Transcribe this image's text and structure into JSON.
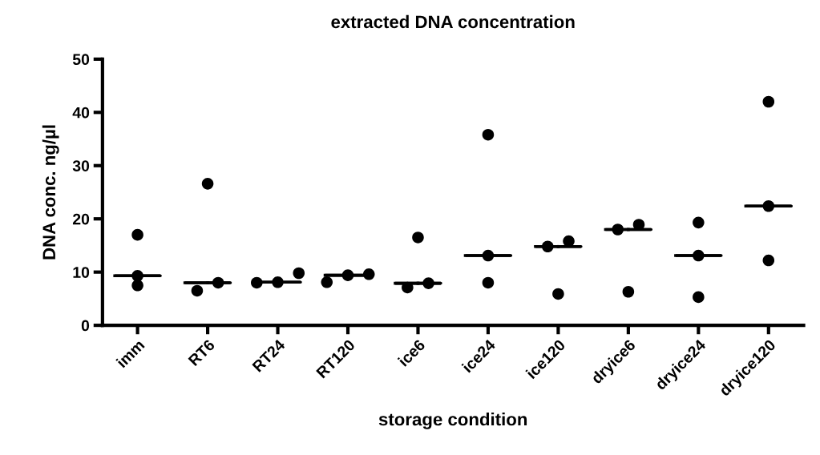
{
  "chart_data": {
    "type": "scatter",
    "title": "extracted DNA concentration",
    "xlabel": "storage condition",
    "ylabel": "DNA conc. ng/µl",
    "categories": [
      "imm",
      "RT6",
      "RT24",
      "RT120",
      "ice6",
      "ice24",
      "ice120",
      "dryice6",
      "dryice24",
      "dryice120"
    ],
    "ylim": [
      0,
      50
    ],
    "yticks": [
      0,
      10,
      20,
      30,
      40,
      50
    ],
    "grid": false,
    "legend": false,
    "series": [
      {
        "color": "#000000",
        "marker": "circle",
        "x": [
          "imm",
          "imm",
          "imm",
          "RT6",
          "RT6",
          "RT6",
          "RT24",
          "RT24",
          "RT24",
          "RT120",
          "RT120",
          "RT120",
          "ice6",
          "ice6",
          "ice6",
          "ice24",
          "ice24",
          "ice24",
          "ice120",
          "ice120",
          "ice120",
          "dryice6",
          "dryice6",
          "dryice6",
          "dryice24",
          "dryice24",
          "dryice24",
          "dryice120",
          "dryice120",
          "dryice120"
        ],
        "values": [
          17.0,
          7.5,
          9.3,
          26.6,
          6.5,
          8.0,
          9.8,
          8.0,
          8.1,
          8.1,
          9.6,
          9.4,
          16.5,
          7.1,
          7.9,
          35.8,
          13.1,
          8.0,
          15.8,
          14.8,
          5.9,
          18.9,
          18.0,
          6.3,
          19.3,
          13.1,
          5.3,
          42.0,
          22.4,
          12.2
        ]
      },
      {
        "type": "box",
        "color": "#000000",
        "boxes": [
          {
            "low": 9.3,
            "q1": 9.3,
            "median": 9.3,
            "q3": 9.3,
            "high": 9.3
          },
          {
            "low": 8.0,
            "q1": 8.0,
            "median": 8.0,
            "q3": 8.0,
            "high": 8.0
          },
          {
            "low": 8.1,
            "q1": 8.1,
            "median": 8.1,
            "q3": 8.1,
            "high": 8.1
          },
          {
            "low": 9.4,
            "q1": 9.4,
            "median": 9.4,
            "q3": 9.4,
            "high": 9.4
          },
          {
            "low": 7.9,
            "q1": 7.9,
            "median": 7.9,
            "q3": 7.9,
            "high": 7.9
          },
          {
            "low": 13.1,
            "q1": 13.1,
            "median": 13.1,
            "q3": 13.1,
            "high": 13.1
          },
          {
            "low": 14.8,
            "q1": 14.8,
            "median": 14.8,
            "q3": 14.8,
            "high": 14.8
          },
          {
            "low": 18.0,
            "q1": 18.0,
            "median": 18.0,
            "q3": 18.0,
            "high": 18.0
          },
          {
            "low": 13.1,
            "q1": 13.1,
            "median": 13.1,
            "q3": 13.1,
            "high": 13.1
          },
          {
            "low": 22.4,
            "q1": 22.4,
            "median": 22.4,
            "q3": 22.4,
            "high": 22.4
          }
        ]
      }
    ]
  }
}
